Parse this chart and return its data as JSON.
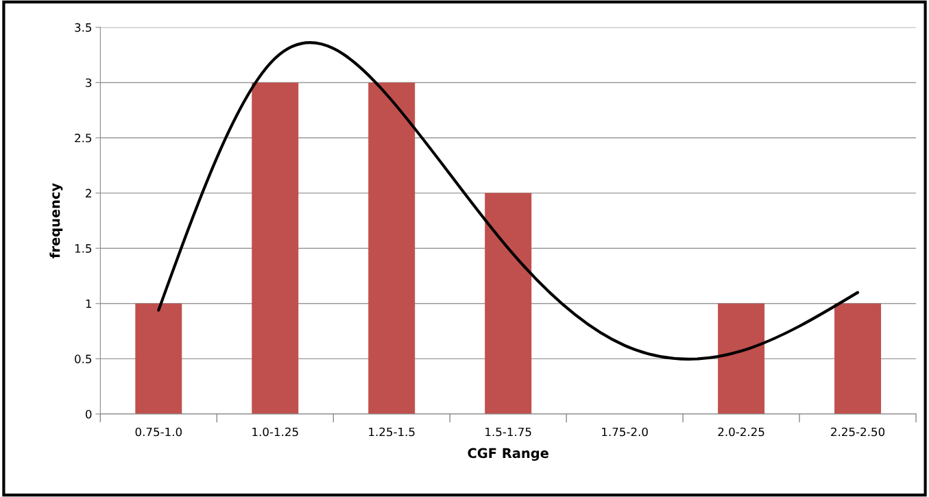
{
  "chart_data": {
    "type": "bar",
    "xlabel": "CGF Range",
    "ylabel": "frequency",
    "categories": [
      "0.75-1.0",
      "1.0-1.25",
      "1.25-1.5",
      "1.5-1.75",
      "1.75-2.0",
      "2.0-2.25",
      "2.25-2.50"
    ],
    "series": [
      {
        "color": "#c0504d",
        "values": [
          1,
          3,
          3,
          2,
          0,
          1,
          1
        ]
      },
      {
        "type": "line",
        "color": "#000000",
        "values": [
          0.94,
          3.22,
          2.84,
          1.5,
          0.62,
          0.57,
          1.1
        ]
      }
    ],
    "ylim": [
      0,
      3.5
    ],
    "yticks": [
      0,
      0.5,
      1,
      1.5,
      2,
      2.5,
      3,
      3.5
    ],
    "grid": "y",
    "legend": false
  }
}
